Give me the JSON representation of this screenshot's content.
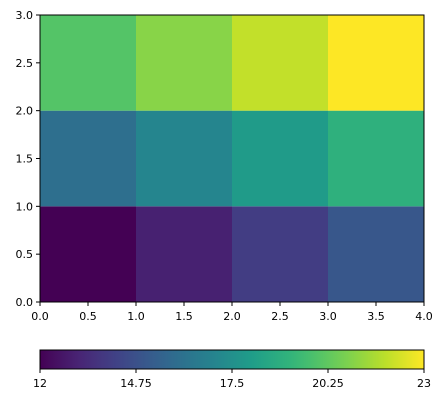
{
  "chart_data": {
    "type": "heatmap",
    "x_edges": [
      0,
      1,
      2,
      3,
      4
    ],
    "y_edges": [
      0,
      1,
      2,
      3
    ],
    "values": [
      [
        12,
        13,
        14,
        15
      ],
      [
        16,
        17,
        18,
        19
      ],
      [
        20,
        21,
        22,
        23
      ]
    ],
    "xlim": [
      0,
      4
    ],
    "ylim": [
      0,
      3
    ],
    "xticks": [
      "0.0",
      "0.5",
      "1.0",
      "1.5",
      "2.0",
      "2.5",
      "3.0",
      "3.5",
      "4.0"
    ],
    "yticks": [
      "0.0",
      "0.5",
      "1.0",
      "1.5",
      "2.0",
      "2.5",
      "3.0"
    ],
    "colormap": "viridis",
    "colorbar": {
      "orientation": "horizontal",
      "range": [
        12,
        23
      ],
      "ticks": [
        "12",
        "14.75",
        "17.5",
        "20.25",
        "23"
      ]
    },
    "grid": false
  }
}
